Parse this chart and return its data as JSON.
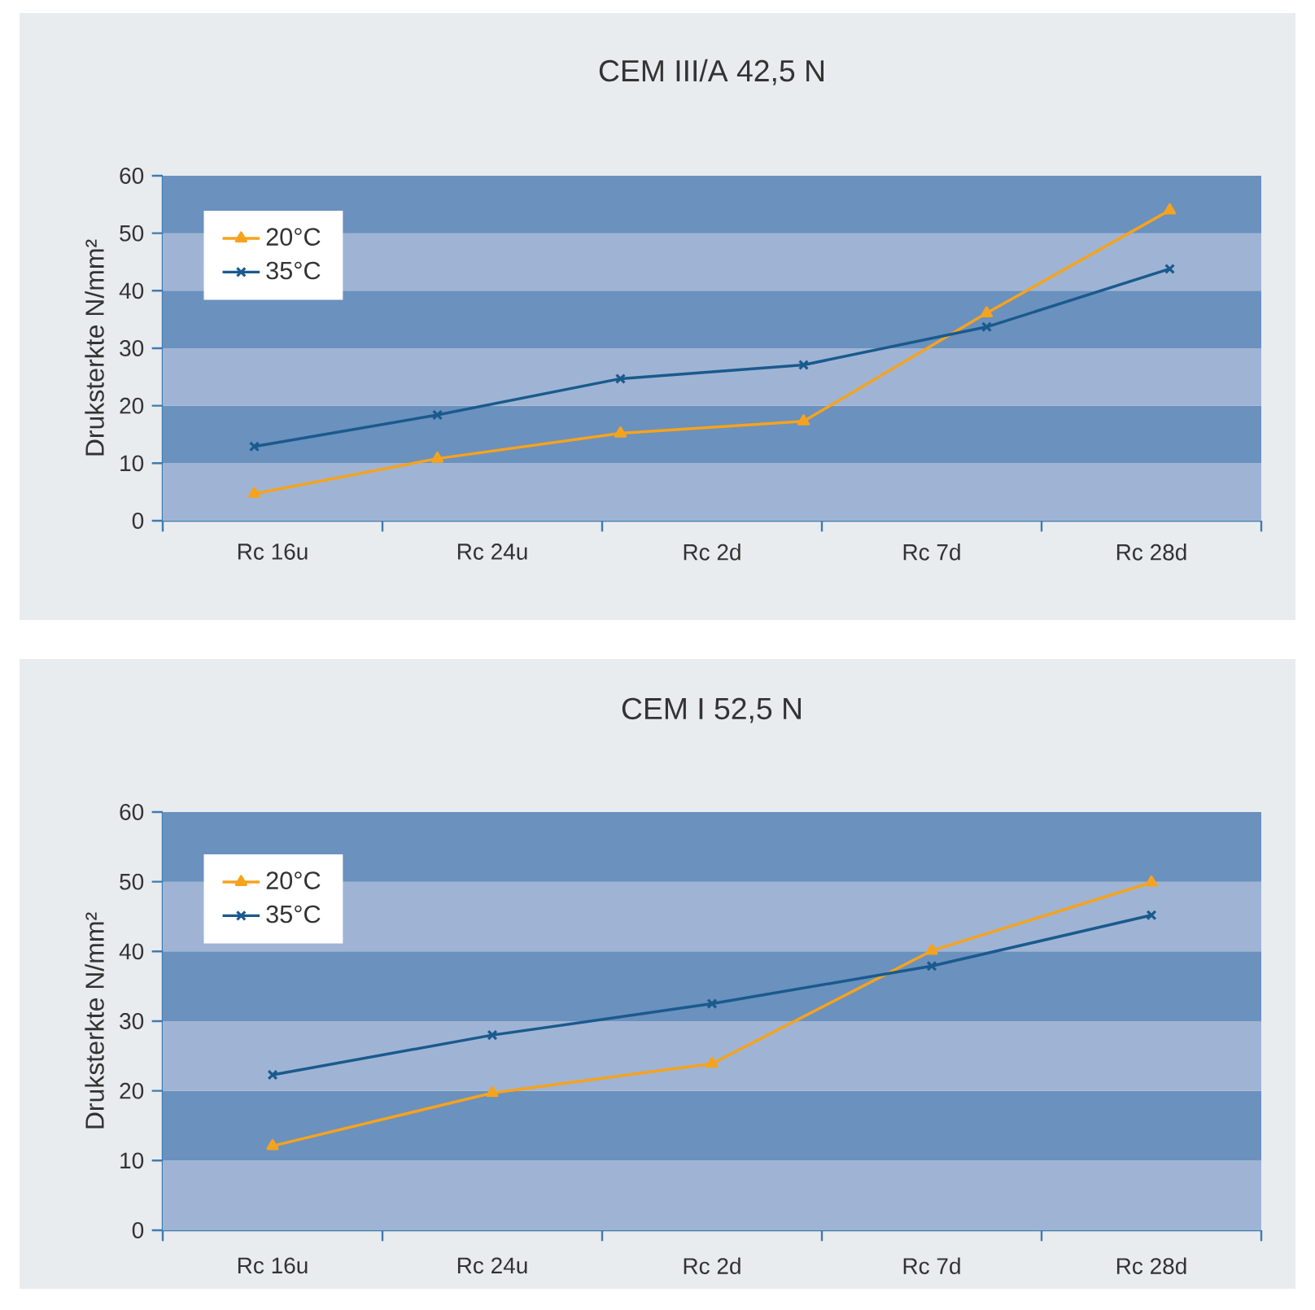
{
  "chart_data": [
    {
      "type": "line",
      "title": "CEM III/A 42,5 N",
      "ylabel": "Druksterkte N/mm²",
      "categories": [
        null,
        null,
        null,
        null,
        null,
        null
      ],
      "ylim": [
        0,
        60
      ],
      "yticks": [
        0,
        10,
        20,
        30,
        40,
        50,
        60
      ],
      "annotations": [
        "Rc 16u",
        "Rc 24u",
        "Rc 2d",
        "Rc 7d",
        "Rc 28d"
      ],
      "legend": "top left",
      "bands": [
        {
          "axis": "y",
          "from": 0,
          "to": 10,
          "color": "#9fb4d4"
        },
        {
          "axis": "y",
          "from": 10,
          "to": 20,
          "color": "#6b91be"
        },
        {
          "axis": "y",
          "from": 20,
          "to": 30,
          "color": "#9fb4d4"
        },
        {
          "axis": "y",
          "from": 30,
          "to": 40,
          "color": "#6b91be"
        },
        {
          "axis": "y",
          "from": 40,
          "to": 50,
          "color": "#9fb4d4"
        },
        {
          "axis": "y",
          "from": 50,
          "to": 60,
          "color": "#6b91be"
        }
      ],
      "series": [
        {
          "name": "20°C",
          "color": "#f5a31e",
          "marker": "triangle",
          "values": [
            4.7,
            10.8,
            15.2,
            17.3,
            36.1,
            54.0
          ]
        },
        {
          "name": "35°C",
          "color": "#1a5a8e",
          "marker": "cross",
          "values": [
            12.9,
            18.4,
            24.7,
            27.1,
            33.7,
            43.8
          ]
        }
      ]
    },
    {
      "type": "line",
      "title": "CEM I 52,5 N",
      "ylabel": "Druksterkte N/mm²",
      "categories": [
        "Rc 16u",
        "Rc 24u",
        "Rc 2d",
        "Rc 7d",
        "Rc 28d"
      ],
      "ylim": [
        0,
        60
      ],
      "yticks": [
        0,
        10,
        20,
        30,
        40,
        50,
        60
      ],
      "legend": "top left",
      "bands": [
        {
          "axis": "y",
          "from": 0,
          "to": 10,
          "color": "#9fb4d4"
        },
        {
          "axis": "y",
          "from": 10,
          "to": 20,
          "color": "#6b91be"
        },
        {
          "axis": "y",
          "from": 20,
          "to": 30,
          "color": "#9fb4d4"
        },
        {
          "axis": "y",
          "from": 30,
          "to": 40,
          "color": "#6b91be"
        },
        {
          "axis": "y",
          "from": 40,
          "to": 50,
          "color": "#9fb4d4"
        },
        {
          "axis": "y",
          "from": 50,
          "to": 60,
          "color": "#6b91be"
        }
      ],
      "series": [
        {
          "name": "20°C",
          "color": "#f5a31e",
          "marker": "triangle",
          "values": [
            12.1,
            19.7,
            23.9,
            40.1,
            49.9
          ]
        },
        {
          "name": "35°C",
          "color": "#1a5a8e",
          "marker": "cross",
          "values": [
            22.3,
            28.0,
            32.5,
            37.9,
            45.2
          ]
        }
      ]
    }
  ]
}
